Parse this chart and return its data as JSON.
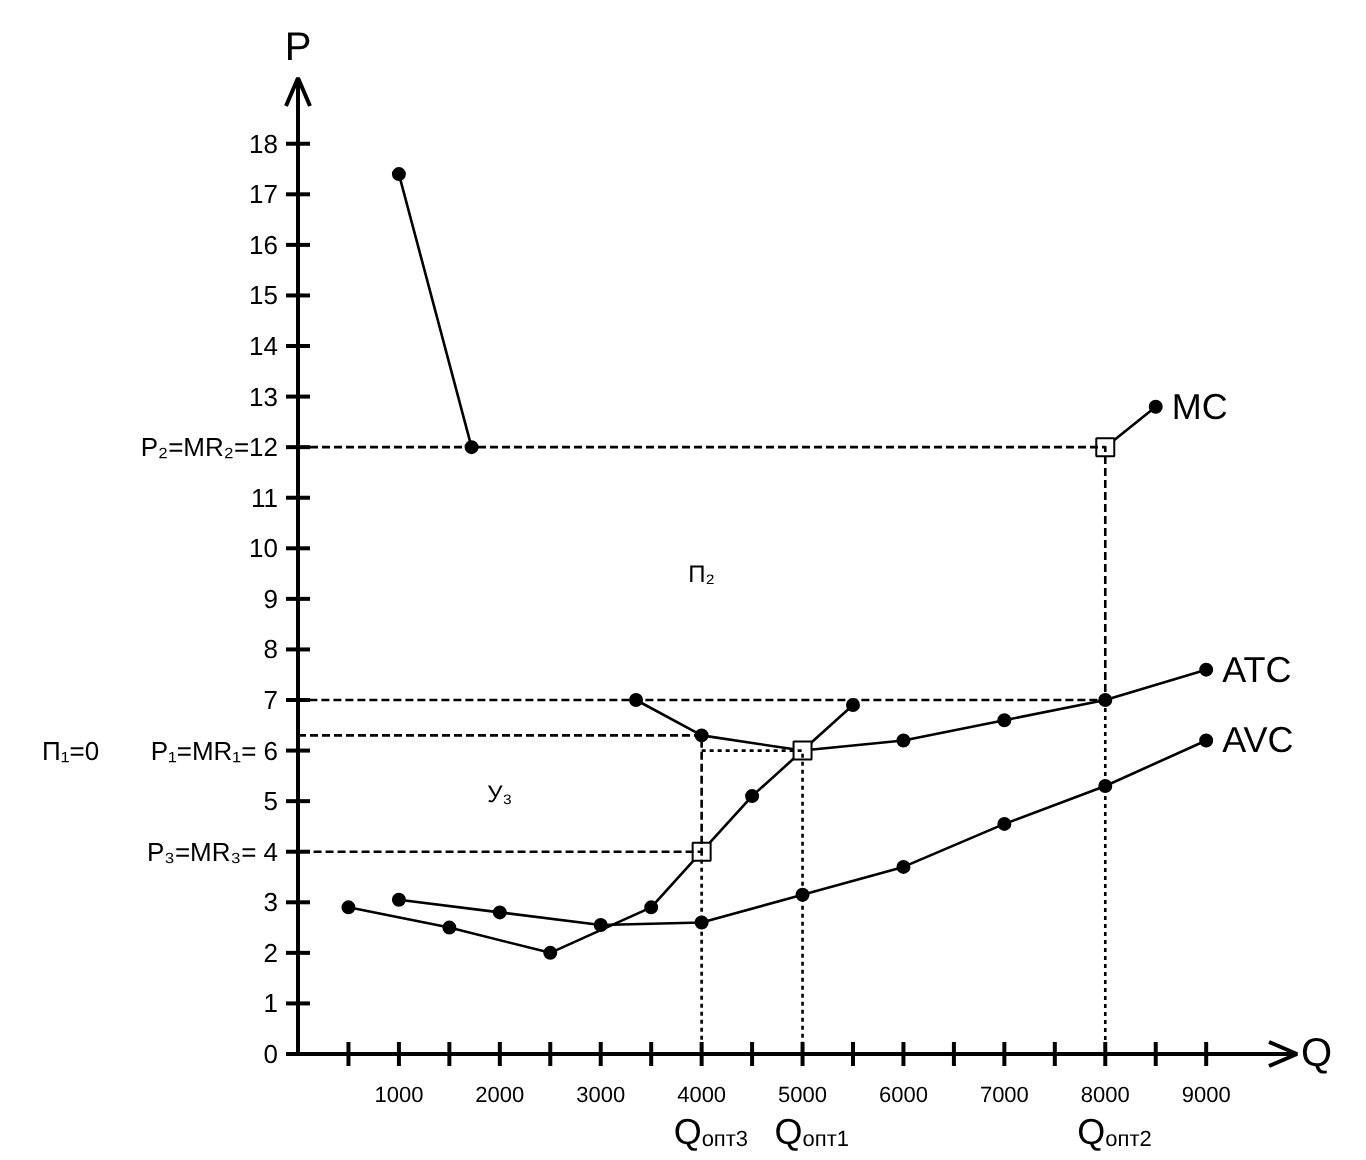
{
  "chart_data": {
    "type": "line",
    "xlabel": "Q",
    "ylabel": "P",
    "xlim": [
      0,
      9900
    ],
    "ylim": [
      0,
      19.3
    ],
    "grid": false,
    "marker": "circle",
    "xticks": [
      {
        "value": 500,
        "label": null
      },
      1000,
      {
        "value": 1500,
        "label": null
      },
      2000,
      {
        "value": 2500,
        "label": null
      },
      3000,
      {
        "value": 3500,
        "label": null
      },
      4000,
      {
        "value": 4500,
        "label": null
      },
      5000,
      {
        "value": 5500,
        "label": null
      },
      6000,
      {
        "value": 6500,
        "label": null
      },
      7000,
      {
        "value": 7500,
        "label": null
      },
      8000,
      {
        "value": 8500,
        "label": null
      },
      9000
    ],
    "yticks": [
      0,
      1,
      2,
      3,
      {
        "value": 4,
        "label": "P₃=MR₃= 4"
      },
      5,
      {
        "value": 6,
        "label": "P₁=MR₁= 6"
      },
      7,
      8,
      9,
      10,
      11,
      {
        "value": 12,
        "label": "P₂=MR₂=12"
      },
      13,
      14,
      15,
      16,
      17,
      18
    ],
    "series": [
      {
        "name": "MC",
        "color": "#000000",
        "x": [
          500,
          1500,
          2500,
          3500,
          4000,
          4500,
          5000,
          5500,
          6500,
          8000,
          8500
        ],
        "values": [
          2.9,
          2.5,
          2.0,
          2.9,
          4,
          5.1,
          6,
          6.9,
          null,
          12,
          12.8
        ]
      },
      {
        "name": "ATC",
        "color": "#000000",
        "x": [
          1000,
          1720,
          2500,
          3350,
          4000,
          5000,
          6000,
          7000,
          8000,
          9000
        ],
        "values": [
          17.4,
          12,
          null,
          7,
          6.3,
          6,
          6.2,
          6.6,
          7,
          7.6
        ]
      },
      {
        "name": "AVC",
        "color": "#000000",
        "x": [
          1000,
          2000,
          3000,
          4000,
          5000,
          6000,
          7000,
          8000,
          9000
        ],
        "values": [
          3.05,
          2.8,
          2.55,
          2.6,
          3.15,
          3.7,
          4.55,
          5.3,
          6.2
        ]
      },
      {
        "type": "scatter",
        "marker": "square",
        "color": "#ffffff",
        "x": [
          4000,
          5000,
          8000
        ],
        "values": [
          4,
          6,
          12
        ]
      },
      {
        "type": "line",
        "marker": "none",
        "line_style": "dashed",
        "color": "#000000",
        "x": [
          0,
          8000,
          8000,
          0
        ],
        "values": [
          12,
          12,
          7,
          7
        ]
      },
      {
        "type": "line",
        "marker": "none",
        "line_style": "dashed",
        "color": "#000000",
        "x": [
          0,
          4000,
          4000,
          0
        ],
        "values": [
          6.3,
          6.3,
          4,
          4
        ]
      },
      {
        "type": "line",
        "marker": "none",
        "line_style": "dotted",
        "color": "#000000",
        "x": [
          4000,
          5000,
          5000
        ],
        "values": [
          6,
          6,
          0
        ]
      },
      {
        "type": "line",
        "marker": "none",
        "line_style": "dotted",
        "color": "#000000",
        "x": [
          4000,
          4000
        ],
        "values": [
          4,
          0
        ]
      },
      {
        "type": "line",
        "marker": "none",
        "line_style": "dotted",
        "color": "#000000",
        "x": [
          8000,
          8000
        ],
        "values": [
          7,
          0
        ]
      }
    ],
    "annotations": [
      "П₂",
      "У₃",
      "П₁=0",
      "Q$_{опт3}$",
      "Q$_{опт1}$",
      "Q$_{опт2}$"
    ]
  }
}
